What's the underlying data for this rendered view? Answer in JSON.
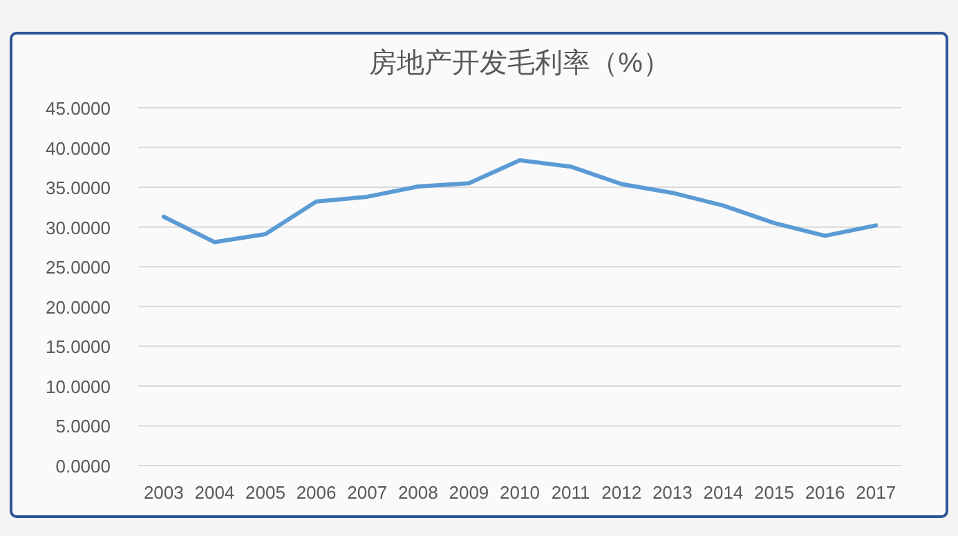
{
  "chart_data": {
    "type": "line",
    "title": "房地产开发毛利率（%）",
    "categories": [
      "2003",
      "2004",
      "2005",
      "2006",
      "2007",
      "2008",
      "2009",
      "2010",
      "2011",
      "2012",
      "2013",
      "2014",
      "2015",
      "2016",
      "2017"
    ],
    "series": [
      {
        "color": "#5b9bd5",
        "values": [
          31.3,
          28.1,
          29.1,
          33.2,
          33.8,
          35.1,
          35.5,
          38.4,
          37.6,
          35.4,
          34.3,
          32.7,
          30.5,
          28.9,
          30.2
        ]
      }
    ],
    "ylim": [
      0,
      45
    ],
    "yticks": [
      {
        "value": 0,
        "label": "0.0000"
      },
      {
        "value": 5,
        "label": "5.0000"
      },
      {
        "value": 10,
        "label": "10.0000"
      },
      {
        "value": 15,
        "label": "15.0000"
      },
      {
        "value": 20,
        "label": "20.0000"
      },
      {
        "value": 25,
        "label": "25.0000"
      },
      {
        "value": 30,
        "label": "30.0000"
      },
      {
        "value": 35,
        "label": "35.0000"
      },
      {
        "value": 40,
        "label": "40.0000"
      },
      {
        "value": 45,
        "label": "45.0000"
      }
    ],
    "grid": "y",
    "line_style": "solid"
  }
}
